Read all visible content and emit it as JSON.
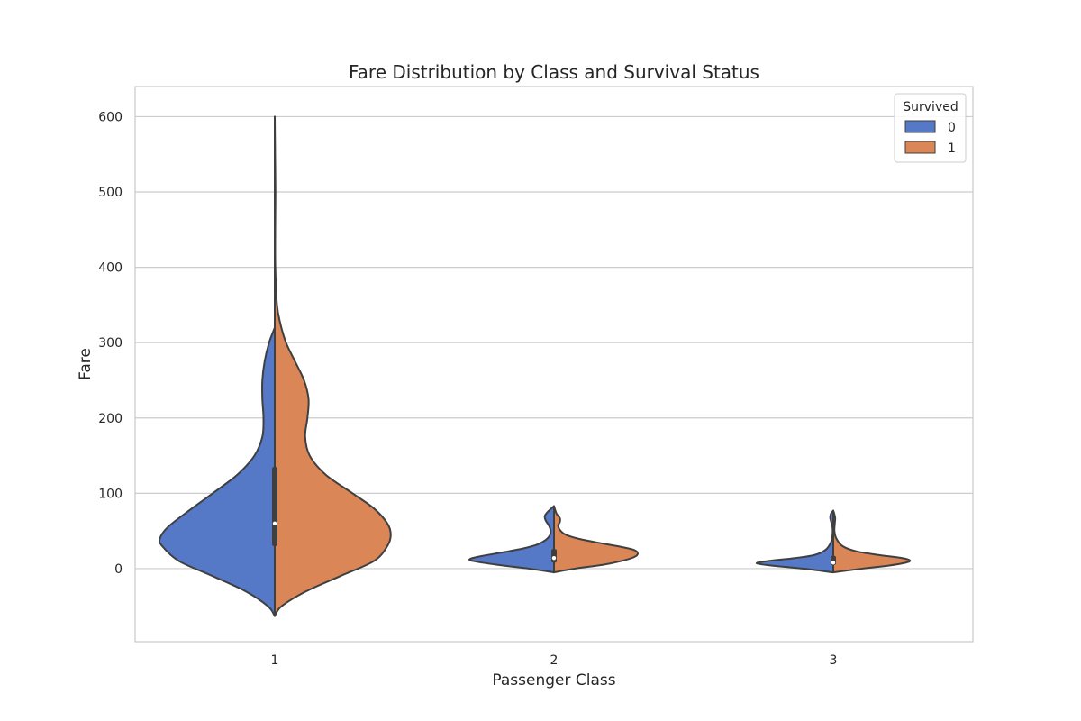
{
  "chart_data": {
    "type": "violin",
    "title": "Fare Distribution by Class and Survival Status",
    "xlabel": "Passenger Class",
    "ylabel": "Fare",
    "categories": [
      "1",
      "2",
      "3"
    ],
    "ylim": [
      -97,
      640
    ],
    "yticks": [
      0,
      100,
      200,
      300,
      400,
      500,
      600
    ],
    "grid": "horizontal",
    "legend": {
      "title": "Survived",
      "placement": "top-right"
    },
    "split": true,
    "colors": {
      "0": "#5579c6",
      "1": "#da8656",
      "outline": "#3f3f3f",
      "grid": "#cccccc"
    },
    "series": [
      {
        "name": "0",
        "violins": [
          {
            "category": "1",
            "range": [
              -63,
              320
            ],
            "density": [
              [
                -63,
                0.0
              ],
              [
                -50,
                0.06
              ],
              [
                -30,
                0.26
              ],
              [
                -10,
                0.55
              ],
              [
                10,
                0.85
              ],
              [
                30,
                1.0
              ],
              [
                40,
                1.02
              ],
              [
                55,
                0.95
              ],
              [
                75,
                0.78
              ],
              [
                100,
                0.55
              ],
              [
                125,
                0.33
              ],
              [
                150,
                0.18
              ],
              [
                175,
                0.11
              ],
              [
                200,
                0.1
              ],
              [
                225,
                0.11
              ],
              [
                250,
                0.11
              ],
              [
                275,
                0.09
              ],
              [
                300,
                0.05
              ],
              [
                320,
                0.0
              ]
            ],
            "quartiles": [
              30,
              60,
              135
            ]
          },
          {
            "category": "2",
            "range": [
              -5,
              83
            ],
            "density": [
              [
                -5,
                0.0
              ],
              [
                0,
                0.3
              ],
              [
                5,
                0.67
              ],
              [
                10,
                0.96
              ],
              [
                13,
                1.0
              ],
              [
                17,
                0.85
              ],
              [
                22,
                0.59
              ],
              [
                27,
                0.36
              ],
              [
                32,
                0.2
              ],
              [
                38,
                0.1
              ],
              [
                44,
                0.05
              ],
              [
                50,
                0.04
              ],
              [
                57,
                0.06
              ],
              [
                64,
                0.1
              ],
              [
                70,
                0.11
              ],
              [
                76,
                0.07
              ],
              [
                83,
                0.0
              ]
            ],
            "quartiles": [
              8,
              14,
              26
            ]
          },
          {
            "category": "3",
            "range": [
              -5,
              77
            ],
            "density": [
              [
                -5,
                0.0
              ],
              [
                0,
                0.4
              ],
              [
                4,
                0.8
              ],
              [
                7,
                1.0
              ],
              [
                10,
                0.86
              ],
              [
                14,
                0.5
              ],
              [
                18,
                0.25
              ],
              [
                25,
                0.1
              ],
              [
                35,
                0.03
              ],
              [
                45,
                0.01
              ],
              [
                55,
                0.01
              ],
              [
                63,
                0.03
              ],
              [
                68,
                0.04
              ],
              [
                73,
                0.03
              ],
              [
                77,
                0.0
              ]
            ],
            "quartiles": [
              5,
              8,
              17
            ]
          }
        ]
      },
      {
        "name": "1",
        "violins": [
          {
            "category": "1",
            "range": [
              -63,
              600
            ],
            "density": [
              [
                -63,
                0.0
              ],
              [
                -50,
                0.06
              ],
              [
                -30,
                0.28
              ],
              [
                -10,
                0.58
              ],
              [
                10,
                0.88
              ],
              [
                30,
                1.0
              ],
              [
                45,
                1.03
              ],
              [
                60,
                1.0
              ],
              [
                80,
                0.88
              ],
              [
                100,
                0.69
              ],
              [
                125,
                0.45
              ],
              [
                150,
                0.31
              ],
              [
                175,
                0.27
              ],
              [
                200,
                0.29
              ],
              [
                225,
                0.3
              ],
              [
                250,
                0.26
              ],
              [
                275,
                0.18
              ],
              [
                300,
                0.1
              ],
              [
                325,
                0.05
              ],
              [
                350,
                0.02
              ],
              [
                400,
                0.005
              ],
              [
                450,
                0.004
              ],
              [
                500,
                0.006
              ],
              [
                550,
                0.003
              ],
              [
                600,
                0.0
              ]
            ],
            "quartiles": [
              30,
              60,
              135
            ]
          },
          {
            "category": "2",
            "range": [
              -5,
              83
            ],
            "density": [
              [
                -5,
                0.0
              ],
              [
                0,
                0.25
              ],
              [
                5,
                0.58
              ],
              [
                10,
                0.8
              ],
              [
                15,
                0.95
              ],
              [
                20,
                1.0
              ],
              [
                25,
                0.95
              ],
              [
                30,
                0.75
              ],
              [
                35,
                0.5
              ],
              [
                40,
                0.28
              ],
              [
                45,
                0.14
              ],
              [
                50,
                0.08
              ],
              [
                57,
                0.05
              ],
              [
                62,
                0.07
              ],
              [
                67,
                0.07
              ],
              [
                73,
                0.03
              ],
              [
                83,
                0.0
              ]
            ],
            "quartiles": [
              8,
              14,
              26
            ]
          },
          {
            "category": "3",
            "range": [
              -5,
              77
            ],
            "density": [
              [
                -5,
                0.0
              ],
              [
                0,
                0.38
              ],
              [
                4,
                0.72
              ],
              [
                8,
                0.95
              ],
              [
                11,
                1.0
              ],
              [
                14,
                0.9
              ],
              [
                18,
                0.6
              ],
              [
                23,
                0.3
              ],
              [
                30,
                0.12
              ],
              [
                40,
                0.04
              ],
              [
                50,
                0.015
              ],
              [
                60,
                0.02
              ],
              [
                67,
                0.025
              ],
              [
                72,
                0.015
              ],
              [
                77,
                0.0
              ]
            ],
            "quartiles": [
              5,
              8,
              17
            ]
          }
        ]
      }
    ]
  }
}
